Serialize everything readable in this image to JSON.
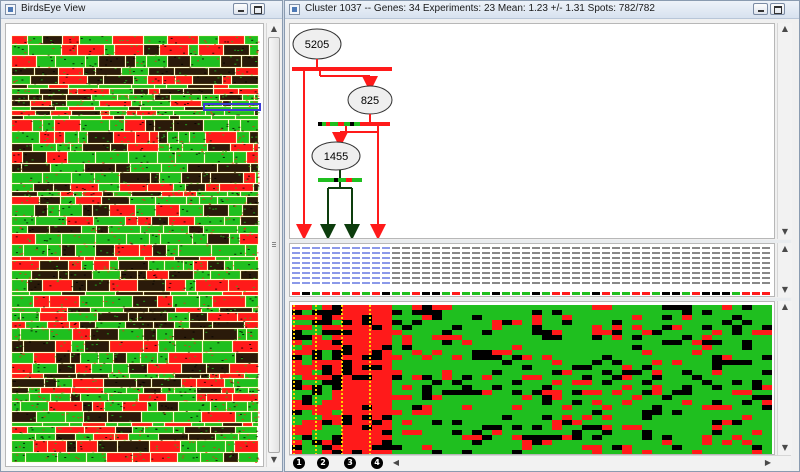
{
  "left_window": {
    "title": "BirdsEye View",
    "min_label": "",
    "max_label": ""
  },
  "right_window": {
    "title": "Cluster 1037 -- Genes: 34 Experiments: 23 Mean: 1.23 +/- 1.31 Spots: 782/782",
    "min_label": "",
    "max_label": ""
  },
  "tree": {
    "nodes": [
      {
        "id": "5205",
        "label": "5205"
      },
      {
        "id": "825",
        "label": "825"
      },
      {
        "id": "1455",
        "label": "1455"
      }
    ]
  },
  "markers": [
    "1",
    "2",
    "3",
    "4"
  ],
  "colors": {
    "red": "#ff1a1a",
    "green": "#1fbf1f",
    "dark_green": "#0d3d0d",
    "selection": "#3b3bd6",
    "marker_yellow": "#ffd400"
  }
}
